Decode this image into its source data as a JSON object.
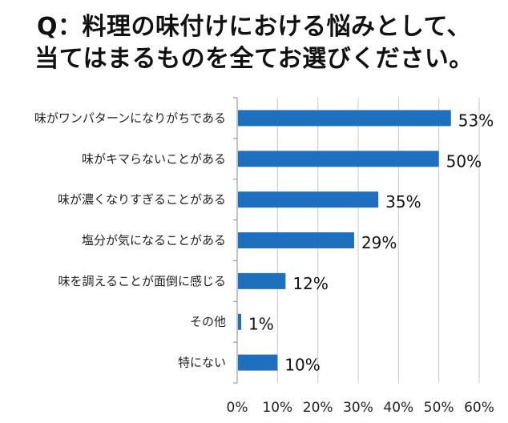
{
  "title_lines": [
    "Q：料理の味付けにおける悩みとして、",
    "当てはまるものを全てお選びください。"
  ],
  "chart_data": {
    "type": "bar",
    "orientation": "horizontal",
    "categories": [
      "味がワンパターンになりがちである",
      "味がキマらないことがある",
      "味が濃くなりすぎることがある",
      "塩分が気になることがある",
      "味を調えることが面倒に感じる",
      "その他",
      "特にない"
    ],
    "values": [
      53,
      50,
      35,
      29,
      12,
      1,
      10
    ],
    "value_labels": [
      "53%",
      "50%",
      "35%",
      "29%",
      "12%",
      "1%",
      "10%"
    ],
    "xlim": [
      0,
      60
    ],
    "x_ticks": [
      0,
      10,
      20,
      30,
      40,
      50,
      60
    ],
    "x_tick_labels": [
      "0%",
      "10%",
      "20%",
      "30%",
      "40%",
      "50%",
      "60%"
    ],
    "grid": true,
    "bar_color": "#1f6fbf",
    "grid_color": "#c8c8c8"
  }
}
